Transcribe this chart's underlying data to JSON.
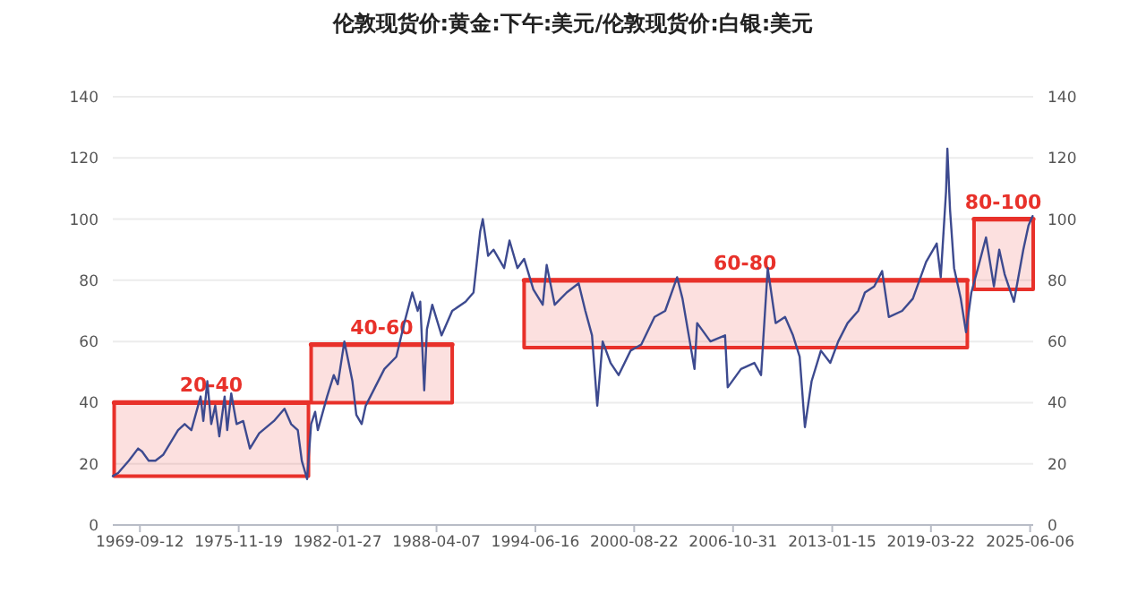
{
  "chart_data": {
    "type": "line",
    "title": "伦敦现货价:黄金:下午:美元/伦敦现货价:白银:美元",
    "x": [
      "1968-01",
      "1968-05",
      "1969-01",
      "1969-08",
      "1969-11",
      "1970-04",
      "1970-09",
      "1971-03",
      "1972-02",
      "1972-07",
      "1972-12",
      "1973-07",
      "1973-09",
      "1973-12",
      "1974-03",
      "1974-06",
      "1974-09",
      "1975-01",
      "1975-03",
      "1975-06",
      "1975-10",
      "1976-03",
      "1976-08",
      "1977-03",
      "1978-02",
      "1978-10",
      "1979-03",
      "1979-08",
      "1979-11",
      "1980-03",
      "1980-06",
      "1980-09",
      "1980-11",
      "1981-06",
      "1981-11",
      "1982-02",
      "1982-07",
      "1983-01",
      "1983-04",
      "1983-08",
      "1983-11",
      "1984-06",
      "1985-01",
      "1985-10",
      "1986-04",
      "1986-10",
      "1987-02",
      "1987-04",
      "1987-07",
      "1987-09",
      "1988-01",
      "1988-08",
      "1989-04",
      "1990-02",
      "1990-08",
      "1991-01",
      "1991-03",
      "1991-07",
      "1991-11",
      "1992-07",
      "1992-11",
      "1993-05",
      "1993-10",
      "1994-05",
      "1994-12",
      "1995-03",
      "1995-09",
      "1996-06",
      "1997-03",
      "1997-08",
      "1998-01",
      "1998-05",
      "1998-09",
      "1999-03",
      "1999-09",
      "2000-06",
      "2001-02",
      "2001-12",
      "2002-08",
      "2003-05",
      "2003-09",
      "2004-06",
      "2004-08",
      "2005-06",
      "2006-05",
      "2006-07",
      "2007-05",
      "2008-03",
      "2008-08",
      "2009-01",
      "2009-07",
      "2010-02",
      "2010-08",
      "2011-01",
      "2011-05",
      "2011-10",
      "2012-05",
      "2012-12",
      "2013-06",
      "2014-01",
      "2014-09",
      "2015-02",
      "2015-09",
      "2016-03",
      "2016-08",
      "2017-06",
      "2018-02",
      "2018-12",
      "2019-08",
      "2019-11",
      "2020-03",
      "2020-04",
      "2020-06",
      "2020-09",
      "2021-02",
      "2021-06",
      "2021-10",
      "2022-03",
      "2022-09",
      "2023-03",
      "2023-07",
      "2023-11",
      "2024-06",
      "2025-01",
      "2025-05",
      "2025-08"
    ],
    "series": [
      {
        "type": "line",
        "color": "#e8312a",
        "x": [
          "1968-02",
          "1980-04"
        ],
        "values": [
          40,
          40
        ],
        "lower": [
          16,
          16
        ],
        "upper": [
          40,
          40
        ]
      },
      {
        "type": "line",
        "color": "#e8312a",
        "x": [
          "1980-06",
          "1989-04"
        ],
        "values": [
          59,
          59
        ],
        "lower": [
          40,
          40
        ],
        "upper": [
          59,
          59
        ]
      },
      {
        "type": "line",
        "color": "#e8312a",
        "x": [
          "1993-10",
          "2021-07"
        ],
        "values": [
          80,
          80
        ],
        "lower": [
          58,
          58
        ],
        "upper": [
          80,
          80
        ]
      },
      {
        "type": "line",
        "color": "#e8312a",
        "x": [
          "2021-12",
          "2025-08-15"
        ],
        "values": [
          100,
          100
        ],
        "lower": [
          77,
          77
        ],
        "upper": [
          100,
          100
        ]
      },
      {
        "color": "#3d4a8f",
        "values": [
          16,
          17,
          21,
          25,
          24,
          21,
          21,
          23,
          31,
          33,
          31,
          42,
          34,
          47,
          33,
          39,
          29,
          42,
          31,
          43,
          33,
          34,
          25,
          30,
          34,
          38,
          33,
          31,
          21,
          15,
          33,
          37,
          31,
          42,
          49,
          46,
          60,
          47,
          36,
          33,
          39,
          45,
          51,
          55,
          66,
          76,
          70,
          73,
          44,
          64,
          72,
          62,
          70,
          73,
          76,
          96,
          100,
          88,
          90,
          84,
          93,
          84,
          87,
          77,
          72,
          85,
          72,
          76,
          79,
          70,
          62,
          39,
          60,
          53,
          49,
          57,
          59,
          68,
          70,
          81,
          74,
          51,
          66,
          60,
          62,
          45,
          51,
          53,
          49,
          84,
          66,
          68,
          62,
          55,
          32,
          47,
          57,
          53,
          60,
          66,
          70,
          76,
          78,
          83,
          68,
          70,
          74,
          86,
          92,
          81,
          109,
          123,
          103,
          84,
          74,
          63,
          76,
          84,
          94,
          78,
          90,
          82,
          73,
          90,
          98,
          101
        ]
      }
    ],
    "xlim": [
      "1968-01-01",
      "2025-08-15"
    ],
    "xticks": [
      "1969-09-12",
      "1975-11-19",
      "1982-01-27",
      "1988-04-07",
      "1994-06-16",
      "2000-08-22",
      "2006-10-31",
      "2013-01-15",
      "2019-03-22",
      "2025-06-06"
    ],
    "ylim": [
      0,
      140
    ],
    "yticks": [
      0,
      20,
      40,
      60,
      80,
      100,
      120,
      140
    ],
    "y2lim": [
      0,
      140
    ],
    "y2ticks": [
      0,
      20,
      40,
      60,
      80,
      100,
      120,
      140
    ],
    "grid": "y",
    "annotations": [
      {
        "text": "20-40",
        "x": "1974-03",
        "y": 40
      },
      {
        "text": "40-60",
        "x": "1984-11",
        "y": 59
      },
      {
        "text": "60-80",
        "x": "2007-08",
        "y": 80
      },
      {
        "text": "80-100",
        "x": "2023-10",
        "y": 100
      }
    ]
  }
}
